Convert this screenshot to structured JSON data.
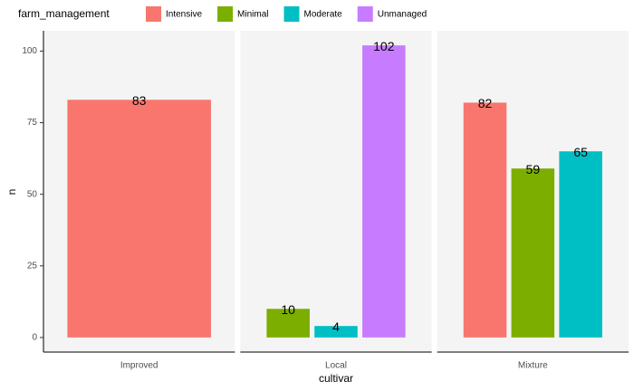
{
  "chart_data": {
    "type": "bar",
    "legend_title": "farm_management",
    "x_label": "cultivar",
    "y_label": "n",
    "categories": [
      "Improved",
      "Local",
      "Mixture"
    ],
    "series": [
      {
        "name": "Intensive",
        "color": "#f8766d",
        "values": [
          83,
          null,
          82
        ]
      },
      {
        "name": "Minimal",
        "color": "#7cae00",
        "values": [
          null,
          10,
          59
        ]
      },
      {
        "name": "Moderate",
        "color": "#00bfc4",
        "values": [
          null,
          4,
          65
        ]
      },
      {
        "name": "Unmanaged",
        "color": "#c77cff",
        "values": [
          null,
          102,
          null
        ]
      }
    ],
    "ylim": [
      -5.1,
      107.1
    ],
    "yticks": [
      0,
      25,
      50,
      75,
      100
    ],
    "grid": false,
    "legend_position": "top"
  }
}
